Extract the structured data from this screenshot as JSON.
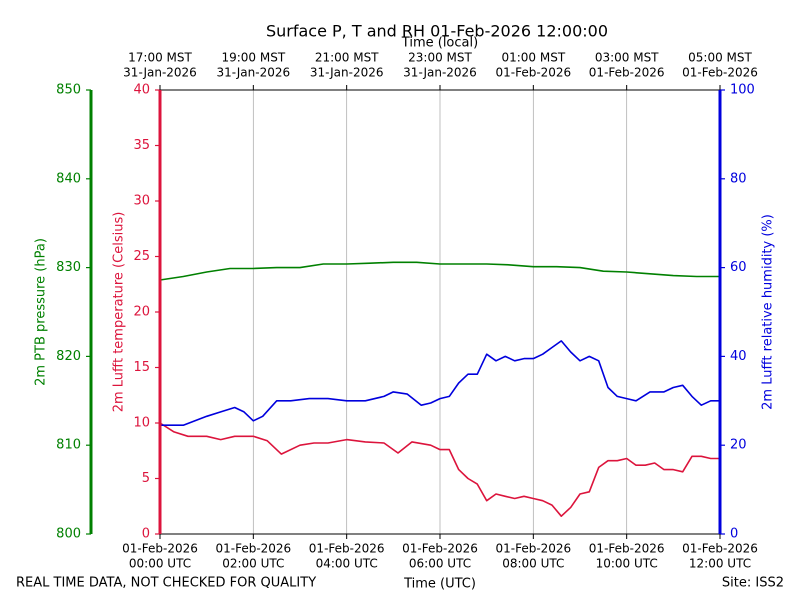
{
  "chart_data": {
    "type": "line",
    "title": "Surface P, T and RH 01-Feb-2026 12:00:00",
    "top_axis_label": "Time (local)",
    "xlabel": "Time (UTC)",
    "footer_left": "REAL TIME DATA, NOT CHECKED FOR QUALITY",
    "footer_right": "Site: ISS2",
    "x_range_hours": [
      0,
      12
    ],
    "x_ticks": [
      {
        "hour": 0,
        "utc_date": "01-Feb-2026",
        "utc_time": "00:00 UTC",
        "local_time": "17:00 MST",
        "local_date": "31-Jan-2026"
      },
      {
        "hour": 2,
        "utc_date": "01-Feb-2026",
        "utc_time": "02:00 UTC",
        "local_time": "19:00 MST",
        "local_date": "31-Jan-2026"
      },
      {
        "hour": 4,
        "utc_date": "01-Feb-2026",
        "utc_time": "04:00 UTC",
        "local_time": "21:00 MST",
        "local_date": "31-Jan-2026"
      },
      {
        "hour": 6,
        "utc_date": "01-Feb-2026",
        "utc_time": "06:00 UTC",
        "local_time": "23:00 MST",
        "local_date": "31-Jan-2026"
      },
      {
        "hour": 8,
        "utc_date": "01-Feb-2026",
        "utc_time": "08:00 UTC",
        "local_time": "01:00 MST",
        "local_date": "01-Feb-2026"
      },
      {
        "hour": 10,
        "utc_date": "01-Feb-2026",
        "utc_time": "10:00 UTC",
        "local_time": "03:00 MST",
        "local_date": "01-Feb-2026"
      },
      {
        "hour": 12,
        "utc_date": "01-Feb-2026",
        "utc_time": "12:00 UTC",
        "local_time": "05:00 MST",
        "local_date": "01-Feb-2026"
      }
    ],
    "axes": {
      "pressure": {
        "label": "2m PTB pressure (hPa)",
        "ylim": [
          800,
          850
        ],
        "ticks": [
          800,
          810,
          820,
          830,
          840,
          850
        ],
        "color": "#008000"
      },
      "temperature": {
        "label": "2m Lufft temperature (Celsius)",
        "ylim": [
          0,
          40
        ],
        "ticks": [
          0,
          5,
          10,
          15,
          20,
          25,
          30,
          35,
          40
        ],
        "color": "#dc143c"
      },
      "humidity": {
        "label": "2m Lufft relative humidity (%)",
        "ylim": [
          0,
          100
        ],
        "ticks": [
          0,
          20,
          40,
          60,
          80,
          100
        ],
        "color": "#0000dd"
      }
    },
    "series": [
      {
        "name": "2m PTB pressure",
        "axis": "pressure",
        "color": "#008000",
        "x": [
          0,
          0.5,
          1,
          1.5,
          2,
          2.5,
          3,
          3.5,
          4,
          4.5,
          5,
          5.5,
          6,
          6.5,
          7,
          7.5,
          8,
          8.5,
          9,
          9.5,
          10,
          10.5,
          11,
          11.5,
          12
        ],
        "values": [
          828.6,
          829.0,
          829.5,
          829.9,
          829.9,
          830.0,
          830.0,
          830.4,
          830.4,
          830.5,
          830.6,
          830.6,
          830.4,
          830.4,
          830.4,
          830.3,
          830.1,
          830.1,
          830.0,
          829.6,
          829.5,
          829.3,
          829.1,
          829.0,
          829.0
        ]
      },
      {
        "name": "2m Lufft temperature",
        "axis": "temperature",
        "color": "#dc143c",
        "x": [
          0,
          0.3,
          0.6,
          1,
          1.3,
          1.6,
          2,
          2.3,
          2.6,
          3,
          3.3,
          3.6,
          4,
          4.4,
          4.8,
          5.1,
          5.4,
          5.8,
          6.0,
          6.2,
          6.4,
          6.6,
          6.8,
          7.0,
          7.2,
          7.4,
          7.6,
          7.8,
          8.0,
          8.2,
          8.4,
          8.6,
          8.8,
          9.0,
          9.2,
          9.4,
          9.6,
          9.8,
          10.0,
          10.2,
          10.4,
          10.6,
          10.8,
          11.0,
          11.2,
          11.4,
          11.6,
          11.8,
          12
        ],
        "values": [
          10,
          9.2,
          8.8,
          8.8,
          8.5,
          8.8,
          8.8,
          8.4,
          7.2,
          8.0,
          8.2,
          8.2,
          8.5,
          8.3,
          8.2,
          7.3,
          8.3,
          8.0,
          7.6,
          7.6,
          5.8,
          5.0,
          4.5,
          3.0,
          3.6,
          3.4,
          3.2,
          3.4,
          3.2,
          3.0,
          2.6,
          1.6,
          2.4,
          3.6,
          3.8,
          6.0,
          6.6,
          6.6,
          6.8,
          6.2,
          6.2,
          6.4,
          5.8,
          5.8,
          5.6,
          7.0,
          7.0,
          6.8,
          6.8
        ]
      },
      {
        "name": "2m Lufft relative humidity",
        "axis": "humidity",
        "color": "#0000dd",
        "x": [
          0,
          0.5,
          1,
          1.3,
          1.6,
          1.8,
          2.0,
          2.2,
          2.5,
          2.8,
          3.2,
          3.6,
          4.0,
          4.4,
          4.8,
          5.0,
          5.3,
          5.6,
          5.8,
          6.0,
          6.2,
          6.4,
          6.6,
          6.8,
          7.0,
          7.2,
          7.4,
          7.6,
          7.8,
          8.0,
          8.2,
          8.4,
          8.6,
          8.8,
          9.0,
          9.2,
          9.4,
          9.6,
          9.8,
          10.0,
          10.2,
          10.5,
          10.8,
          11.0,
          11.2,
          11.4,
          11.6,
          11.8,
          12
        ],
        "values": [
          24.5,
          24.5,
          26.5,
          27.5,
          28.5,
          27.5,
          25.5,
          26.5,
          30.0,
          30.0,
          30.5,
          30.5,
          30.0,
          30.0,
          31.0,
          32.0,
          31.5,
          29.0,
          29.5,
          30.5,
          31.0,
          34.0,
          36.0,
          36.0,
          40.5,
          39.0,
          40.0,
          39.0,
          39.5,
          39.5,
          40.5,
          42.0,
          43.5,
          41.0,
          39.0,
          40.0,
          39.0,
          33.0,
          31.0,
          30.5,
          30.0,
          32.0,
          32.0,
          33.0,
          33.5,
          31.0,
          29.0,
          30.0,
          30.0
        ]
      }
    ]
  }
}
